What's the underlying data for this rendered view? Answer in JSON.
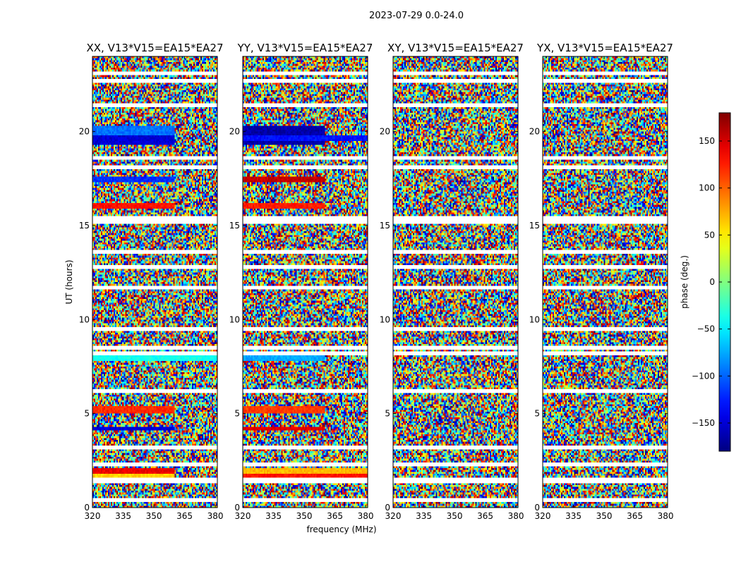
{
  "figure": {
    "suptitle": "2023-07-29 0.0-24.0"
  },
  "chart_data": [
    {
      "type": "heatmap",
      "title": "XX, V13*V15=EA15*EA27",
      "xlabel": "frequency (MHz)",
      "ylabel": "UT (hours)",
      "xlim": [
        320,
        381
      ],
      "ylim": [
        0,
        24
      ],
      "xticks": [
        320,
        335,
        350,
        365,
        380
      ],
      "yticks": [
        0,
        5,
        10,
        15,
        20
      ],
      "colorscale": "jet",
      "features": [
        {
          "ut": [
            19.3,
            19.8
          ],
          "phase": -150,
          "freq_end": 360
        },
        {
          "ut": [
            19.8,
            20.3
          ],
          "phase": -95,
          "freq_end": 360
        },
        {
          "ut": [
            17.3,
            17.6
          ],
          "phase": -120,
          "freq_end": 360
        },
        {
          "ut": [
            15.9,
            16.2
          ],
          "phase": -155,
          "freq_end": 344
        },
        {
          "ut": [
            15.9,
            16.2
          ],
          "phase": 130,
          "freq_end": 360
        },
        {
          "ut": [
            7.8,
            8.2
          ],
          "phase": -40,
          "freq_end": 381
        },
        {
          "ut": [
            5.0,
            5.4
          ],
          "phase": 120,
          "freq_end": 360
        },
        {
          "ut": [
            4.15,
            4.35
          ],
          "phase": -150,
          "freq_end": 360
        },
        {
          "ut": [
            1.8,
            2.1
          ],
          "phase": 140,
          "freq_end": 360
        },
        {
          "ut": [
            1.6,
            1.8
          ],
          "phase": 60,
          "freq_end": 360
        }
      ]
    },
    {
      "type": "heatmap",
      "title": "YY, V13*V15=EA15*EA27",
      "xlabel": "",
      "ylabel": "",
      "xlim": [
        320,
        381
      ],
      "ylim": [
        0,
        24
      ],
      "xticks": [
        320,
        335,
        350,
        365,
        380
      ],
      "yticks": [
        0,
        5,
        10,
        15,
        20
      ],
      "colorscale": "jet",
      "features": [
        {
          "ut": [
            19.3,
            20.3
          ],
          "phase": -165,
          "freq_end": 360
        },
        {
          "ut": [
            19.5,
            19.8
          ],
          "phase": -130,
          "freq_end": 381
        },
        {
          "ut": [
            17.3,
            17.6
          ],
          "phase": 155,
          "freq_end": 360
        },
        {
          "ut": [
            15.9,
            16.2
          ],
          "phase": 125,
          "freq_end": 360
        },
        {
          "ut": [
            7.8,
            8.2
          ],
          "phase": -75,
          "freq_end": 360
        },
        {
          "ut": [
            5.0,
            5.4
          ],
          "phase": 115,
          "freq_end": 360
        },
        {
          "ut": [
            4.15,
            4.35
          ],
          "phase": 145,
          "freq_end": 360
        },
        {
          "ut": [
            1.8,
            2.1
          ],
          "phase": 70,
          "freq_end": 381
        },
        {
          "ut": [
            1.6,
            1.8
          ],
          "phase": 130,
          "freq_end": 381
        }
      ]
    },
    {
      "type": "heatmap",
      "title": "XY, V13*V15=EA15*EA27",
      "xlabel": "",
      "ylabel": "",
      "xlim": [
        320,
        381
      ],
      "ylim": [
        0,
        24
      ],
      "xticks": [
        320,
        335,
        350,
        365,
        380
      ],
      "yticks": [
        0,
        5,
        10,
        15,
        20
      ],
      "colorscale": "jet",
      "features": []
    },
    {
      "type": "heatmap",
      "title": "YX, V13*V15=EA15*EA27",
      "xlabel": "",
      "ylabel": "",
      "xlim": [
        320,
        381
      ],
      "ylim": [
        0,
        24
      ],
      "xticks": [
        320,
        335,
        350,
        365,
        380
      ],
      "yticks": [
        0,
        5,
        10,
        15,
        20
      ],
      "colorscale": "jet",
      "features": []
    }
  ],
  "colorbar": {
    "label": "phase (deg.)",
    "range": [
      -180,
      180
    ],
    "ticks": [
      -150,
      -100,
      -50,
      0,
      50,
      100,
      150
    ],
    "tick_labels": [
      "−150",
      "−100",
      "−50",
      "0",
      "50",
      "100",
      "150"
    ]
  },
  "flagged_ut": [
    0.5,
    1.55,
    1.6,
    2.45,
    3.3,
    6.3,
    8.35,
    8.6,
    9.65,
    11.75,
    12.9,
    13.7,
    15.3,
    15.55,
    18.2,
    18.7,
    21.5,
    22.8,
    23.2
  ]
}
